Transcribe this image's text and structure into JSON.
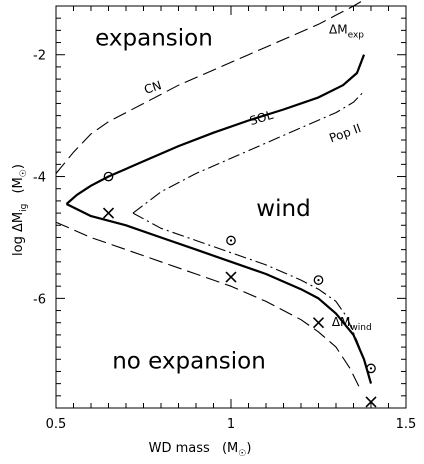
{
  "chart_data": {
    "type": "line",
    "xlabel": "WD mass",
    "xlabel_unit": "M",
    "ylabel": "log ΔM",
    "ylabel_sub": "ig",
    "ylabel_unit": "M",
    "xlim": [
      0.5,
      1.5
    ],
    "ylim": [
      -7.8,
      -1.2
    ],
    "x_ticks": [
      0.5,
      1,
      1.5
    ],
    "x_tick_labels": [
      "0.5",
      "1",
      "1.5"
    ],
    "y_ticks": [
      -2,
      -4,
      -6
    ],
    "y_tick_labels": [
      "-2",
      "-4",
      "-6"
    ],
    "grid": false,
    "region_labels": [
      {
        "text": "expansion",
        "x": 0.78,
        "y": -1.85
      },
      {
        "text": "wind",
        "x": 1.15,
        "y": -4.65
      },
      {
        "text": "no expansion",
        "x": 0.88,
        "y": -7.15
      }
    ],
    "series": [
      {
        "name": "SOL",
        "label_pos": {
          "x": 1.09,
          "y": -3.1
        },
        "style": "solid",
        "x": [
          0.53,
          0.56,
          0.6,
          0.65,
          0.75,
          0.85,
          0.95,
          1.05,
          1.15,
          1.25,
          1.32,
          1.36,
          1.38
        ],
        "y": [
          -4.45,
          -4.3,
          -4.15,
          -4.0,
          -3.75,
          -3.5,
          -3.28,
          -3.08,
          -2.9,
          -2.7,
          -2.5,
          -2.3,
          -2.0
        ]
      },
      {
        "name": "",
        "style": "solid",
        "x": [
          0.53,
          0.6,
          0.7,
          0.8,
          0.9,
          1.0,
          1.1,
          1.2,
          1.25,
          1.3,
          1.35,
          1.38,
          1.4
        ],
        "y": [
          -4.45,
          -4.65,
          -4.8,
          -5.0,
          -5.2,
          -5.4,
          -5.6,
          -5.85,
          -6.0,
          -6.25,
          -6.6,
          -7.0,
          -7.4
        ]
      },
      {
        "name": "CN",
        "label_pos": {
          "x": 0.78,
          "y": -2.6
        },
        "style": "dashed",
        "x": [
          0.5,
          0.55,
          0.6,
          0.65,
          0.75,
          0.85,
          0.95,
          1.05,
          1.15,
          1.25,
          1.3,
          1.35,
          1.38
        ],
        "y": [
          -3.95,
          -3.6,
          -3.3,
          -3.1,
          -2.8,
          -2.5,
          -2.25,
          -2.0,
          -1.75,
          -1.5,
          -1.35,
          -1.2,
          -1.1
        ]
      },
      {
        "name": "",
        "style": "dashed",
        "x": [
          0.5,
          0.6,
          0.7,
          0.8,
          0.9,
          1.0,
          1.1,
          1.2,
          1.25,
          1.3,
          1.34,
          1.37
        ],
        "y": [
          -4.75,
          -5.0,
          -5.2,
          -5.4,
          -5.6,
          -5.8,
          -6.05,
          -6.35,
          -6.55,
          -6.8,
          -7.15,
          -7.5
        ]
      },
      {
        "name": "Pop II",
        "label_pos": {
          "x": 1.33,
          "y": -3.35
        },
        "style": "dashdot",
        "x": [
          0.72,
          0.8,
          0.9,
          1.0,
          1.1,
          1.2,
          1.3,
          1.35,
          1.38
        ],
        "y": [
          -4.6,
          -4.25,
          -3.95,
          -3.7,
          -3.45,
          -3.2,
          -2.95,
          -2.78,
          -2.6
        ]
      },
      {
        "name": "",
        "style": "dashdot",
        "x": [
          0.72,
          0.8,
          0.9,
          1.0,
          1.1,
          1.2,
          1.25,
          1.3,
          1.33,
          1.36,
          1.38
        ],
        "y": [
          -4.6,
          -4.85,
          -5.05,
          -5.25,
          -5.45,
          -5.7,
          -5.85,
          -6.05,
          -6.3,
          -6.7,
          -7.0
        ]
      }
    ],
    "curve_labels": [
      {
        "text": "ΔM",
        "sub": "exp",
        "x": 1.33,
        "y": -1.65
      },
      {
        "text": "ΔM",
        "sub": "wind",
        "x": 1.345,
        "y": -6.45
      }
    ],
    "points_circle": {
      "x": [
        0.65,
        1.0,
        1.25,
        1.4
      ],
      "y": [
        -4.0,
        -5.05,
        -5.7,
        -7.15
      ]
    },
    "points_cross": {
      "x": [
        0.65,
        1.0,
        1.25,
        1.4
      ],
      "y": [
        -4.6,
        -5.65,
        -6.4,
        -7.7
      ]
    }
  }
}
